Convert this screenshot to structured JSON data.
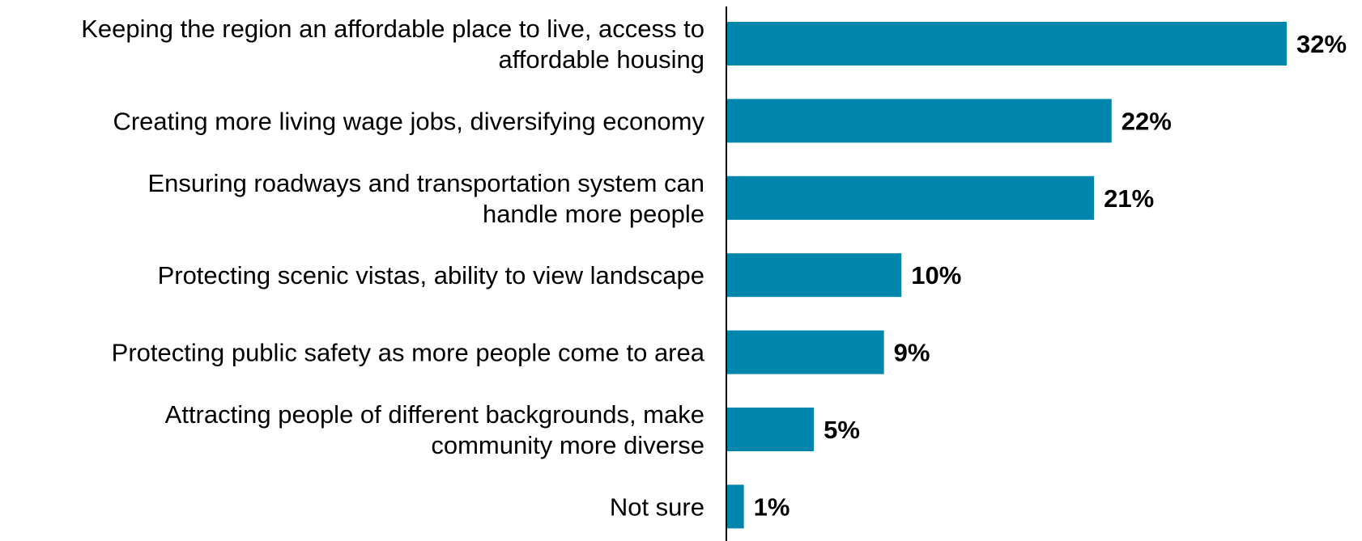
{
  "chart_data": {
    "type": "bar",
    "orientation": "horizontal",
    "categories": [
      [
        "Keeping the region an affordable place to live, access to",
        "affordable housing"
      ],
      [
        "Creating more living wage jobs, diversifying economy"
      ],
      [
        "Ensuring roadways and transportation system can",
        "handle more people"
      ],
      [
        "Protecting scenic vistas, ability to view landscape"
      ],
      [
        "Protecting public safety as more people come to area"
      ],
      [
        "Attracting people of different backgrounds, make",
        "community more diverse"
      ],
      [
        "Not sure"
      ]
    ],
    "values": [
      32,
      22,
      21,
      10,
      9,
      5,
      1
    ],
    "value_labels": [
      "32%",
      "22%",
      "21%",
      "10%",
      "9%",
      "5%",
      "1%"
    ],
    "unit": "%",
    "xlim": [
      0,
      32
    ],
    "grid": false,
    "legend": "none",
    "colors": {
      "bar": "#0085AD",
      "axis": "#000000",
      "text": "#000000"
    }
  }
}
